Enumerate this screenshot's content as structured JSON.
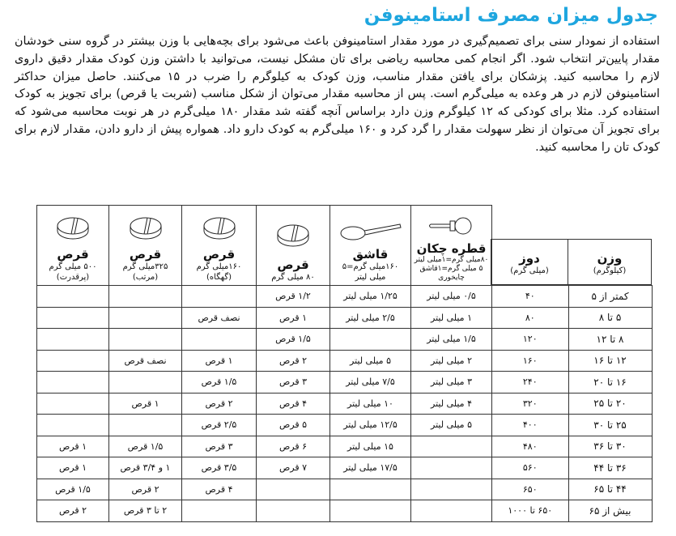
{
  "title": "جدول میزان مصرف استامینوفن",
  "paragraph": "استفاده از نمودار سنی برای تصمیم‌گیری در مورد مقدار استامینوفن باعث می‌شود برای بچه‌هایی با وزن بیشتر در گروه سنی خودشان مقدار پایین‌تر انتخاب شود. اگر انجام کمی محاسبه ریاضی برای تان مشکل نیست، می‌توانید با داشتن وزن کودک مقدار دقیق داروی لازم را محاسبه کنید. پزشکان برای یافتن مقدار مناسب، وزن کودک به کیلوگرم را ضرب در ۱۵ می‌کنند. حاصل میزان حداکثر استامینوفن لازم در هر وعده به میلی‌گرم است. پس از محاسبه مقدار می‌توان از شکل مناسب (شربت یا قرص) برای تجویز به کودک استفاده کرد. مثلا برای کودکی که ۱۲ کیلوگرم وزن دارد براساس آنچه گفته شد مقدار ۱۸۰ میلی‌گرم در هر نوبت محاسبه می‌شود که برای تجویز آن می‌توان از نظر سهولت مقدار را گرد کرد و ۱۶۰ میلی‌گرم به کودک دارو داد. همواره پیش از دارو دادن، مقدار لازم برای کودک تان را محاسبه کنید.",
  "table": {
    "headers": {
      "weight": {
        "title": "وزن",
        "sub": "(کیلوگرم)"
      },
      "dose": {
        "title": "دوز",
        "sub": "(میلی گرم)"
      },
      "dropper": {
        "title": "قطره چکان",
        "sub1": "۸۰میلی گرم=۱میلی لیتر",
        "sub2": "۵ میلی گرم=۱قاشق",
        "sub3": "چایخوری",
        "icon": "dropper-icon"
      },
      "spoon": {
        "title": "قاشق",
        "sub1": "۱۶۰میلی گرم=۵",
        "sub2": "میلی لیتر",
        "icon": "spoon-icon"
      },
      "tab80": {
        "title": "قرص",
        "sub1": "۸۰ میلی گرم",
        "icon": "tablet-icon"
      },
      "tab160": {
        "title": "قرص",
        "sub1": "۱۶۰میلی گرم",
        "sub2": "(گهگاه)",
        "icon": "tablet-icon"
      },
      "tab325": {
        "title": "قرص",
        "sub1": "۳۲۵میلی گرم",
        "sub2": "(مرتب)",
        "icon": "tablet-icon"
      },
      "tab500": {
        "title": "قرص",
        "sub1": "۵۰۰ میلی گرم",
        "sub2": "(پرقدرت)",
        "icon": "tablet-icon"
      }
    },
    "rows": [
      [
        "کمتر از ۵",
        "۴۰",
        "۰/۵ میلی لیتر",
        "۱/۲۵ میلی لیتر",
        "۱/۲ قرص",
        "",
        "",
        ""
      ],
      [
        "۵ تا ۸",
        "۸۰",
        "۱ میلی لیتر",
        "۲/۵ میلی لیتر",
        "۱ قرص",
        "نصف قرص",
        "",
        ""
      ],
      [
        "۸ تا ۱۲",
        "۱۲۰",
        "۱/۵ میلی لیتر",
        "",
        "۱/۵ قرص",
        "",
        "",
        ""
      ],
      [
        "۱۲ تا ۱۶",
        "۱۶۰",
        "۲ میلی لیتر",
        "۵ میلی لیتر",
        "۲ قرص",
        "۱ قرص",
        "نصف قرص",
        ""
      ],
      [
        "۱۶ تا ۲۰",
        "۲۴۰",
        "۳ میلی لیتر",
        "۷/۵ میلی لیتر",
        "۳ قرص",
        "۱/۵ قرص",
        "",
        ""
      ],
      [
        "۲۰ تا ۲۵",
        "۳۲۰",
        "۴ میلی لیتر",
        "۱۰ میلی لیتر",
        "۴ قرص",
        "۲ قرص",
        "۱ قرص",
        ""
      ],
      [
        "۲۵ تا ۳۰",
        "۴۰۰",
        "۵ میلی لیتر",
        "۱۲/۵ میلی لیتر",
        "۵ قرص",
        "۲/۵ قرص",
        "",
        ""
      ],
      [
        "۳۰ تا ۳۶",
        "۴۸۰",
        "",
        "۱۵ میلی لیتر",
        "۶ قرص",
        "۳ قرص",
        "۱/۵ قرص",
        "۱ قرص"
      ],
      [
        "۳۶ تا ۴۴",
        "۵۶۰",
        "",
        "۱۷/۵ میلی لیتر",
        "۷ قرص",
        "۳/۵ قرص",
        "۱ و ۳/۴ قرص",
        "۱ قرص"
      ],
      [
        "۴۴ تا ۶۵",
        "۶۵۰",
        "",
        "",
        "",
        "۴ قرص",
        "۲ قرص",
        "۱/۵ قرص"
      ],
      [
        "بیش از ۶۵",
        "۶۵۰ تا ۱۰۰۰",
        "",
        "",
        "",
        "",
        "۲ تا ۳ قرص",
        "۲ قرص"
      ]
    ]
  }
}
